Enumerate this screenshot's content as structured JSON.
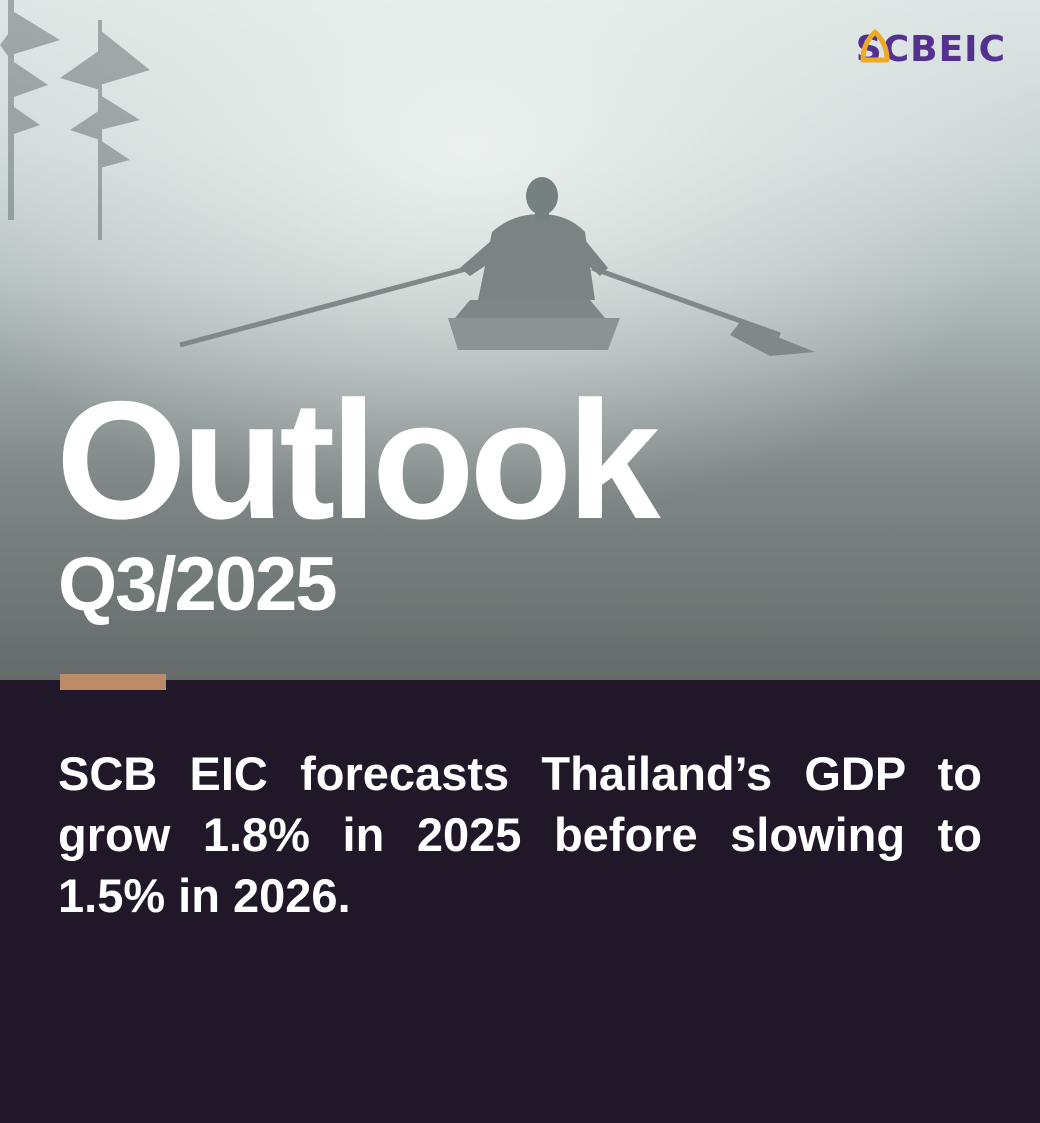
{
  "brand": {
    "logo_left": "SCB",
    "logo_right": "EIC",
    "logo_color": "#55318f",
    "logo_mark_color": "#f0a927",
    "logo_mark_icon": "bell-outline-icon"
  },
  "hero": {
    "title": "Outlook",
    "subtitle": "Q3/2025",
    "image_icon": "rower-in-fog-photo"
  },
  "accent_color": "#bb8c67",
  "panel_color": "#201829",
  "summary": {
    "text": "SCB EIC forecasts Thailand’s GDP to grow 1.8% in 2025 before slowing to 1.5% in 2026."
  }
}
